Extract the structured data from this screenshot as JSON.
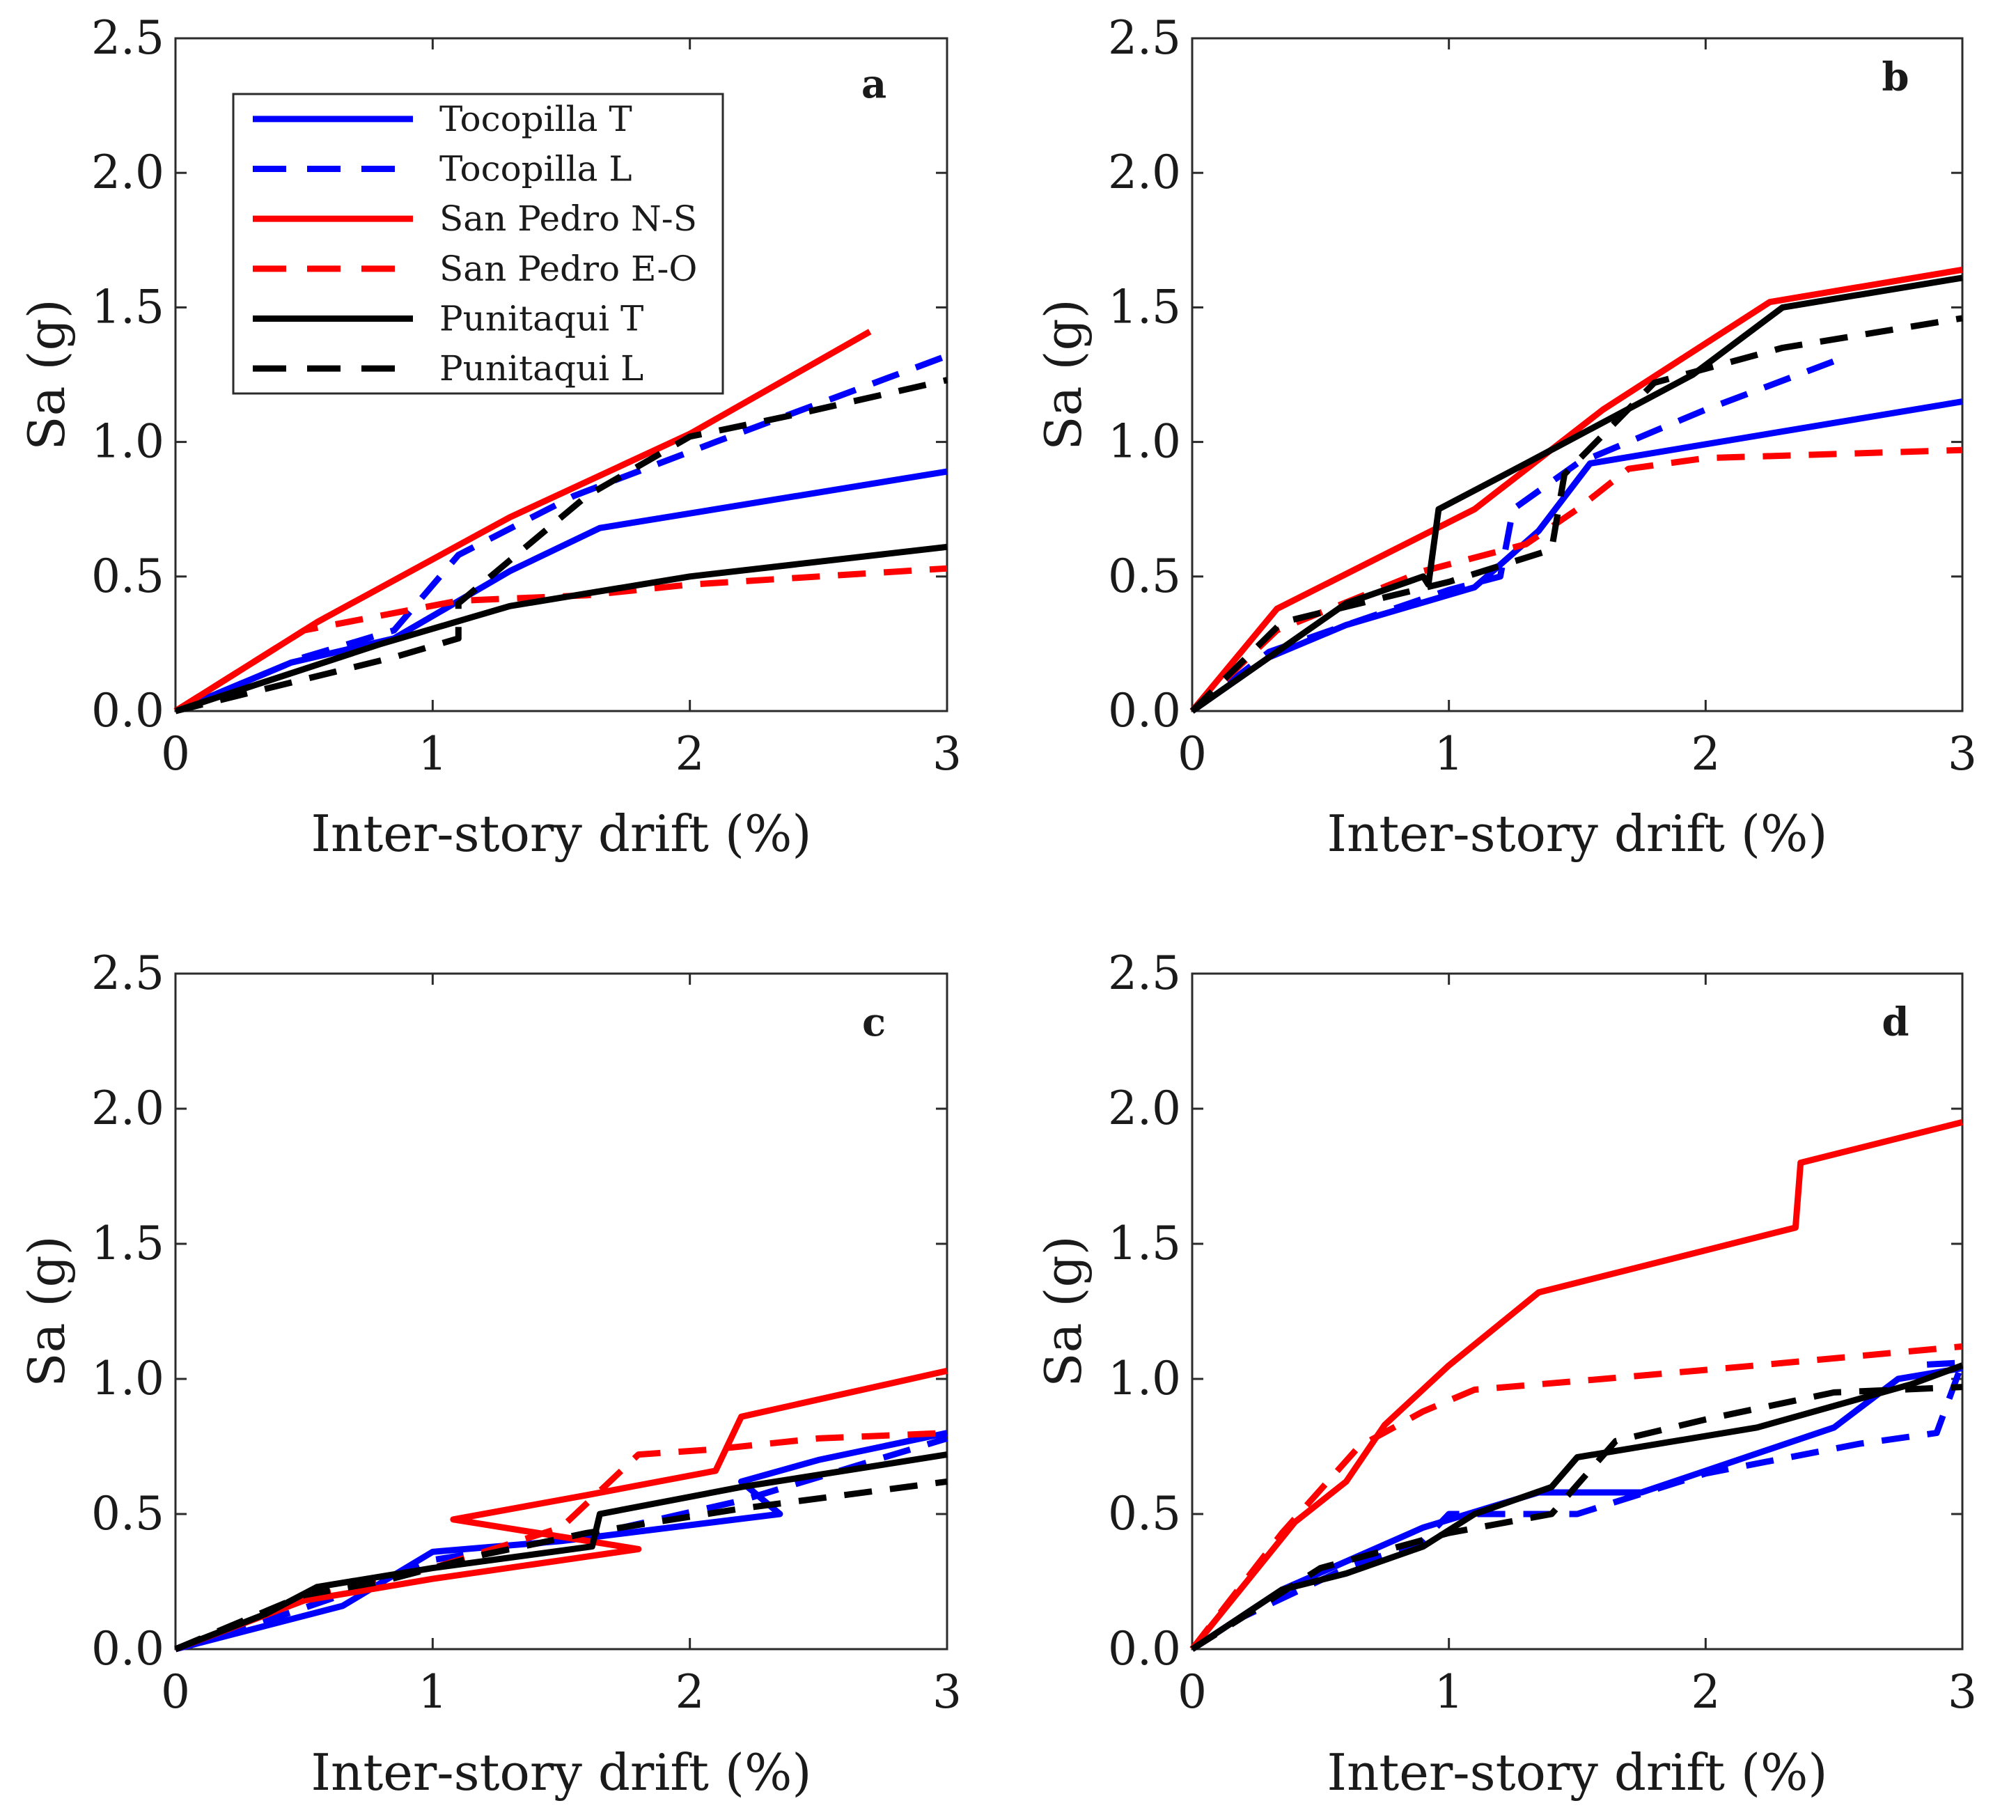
{
  "legend": {
    "entries": [
      {
        "name": "Tocopilla T",
        "color": "#0000ff",
        "dashed": false
      },
      {
        "name": "Tocopilla L",
        "color": "#0000ff",
        "dashed": true
      },
      {
        "name": "San Pedro N-S",
        "color": "#ff0000",
        "dashed": false
      },
      {
        "name": "San Pedro E-O",
        "color": "#ff0000",
        "dashed": true
      },
      {
        "name": "Punitaqui T",
        "color": "#000000",
        "dashed": false
      },
      {
        "name": "Punitaqui L",
        "color": "#000000",
        "dashed": true
      }
    ]
  },
  "chart_data": [
    {
      "type": "line",
      "panel": "a",
      "xlabel": "Inter-story drift (%)",
      "ylabel": "Sa (g)",
      "xlim": [
        0,
        3
      ],
      "ylim": [
        0,
        2.5
      ],
      "xticks": [
        "0",
        "1",
        "2",
        "3"
      ],
      "yticks": [
        "0.0",
        "0.5",
        "1.0",
        "1.5",
        "2.0",
        "2.5"
      ],
      "series": [
        {
          "name": "Tocopilla T",
          "x": [
            0,
            0.45,
            0.85,
            1.3,
            1.65,
            3.0
          ],
          "y": [
            0,
            0.18,
            0.27,
            0.52,
            0.68,
            0.89
          ]
        },
        {
          "name": "Tocopilla L",
          "x": [
            0,
            0.5,
            0.85,
            1.1,
            1.55,
            2.1,
            3.0
          ],
          "y": [
            0,
            0.2,
            0.3,
            0.58,
            0.8,
            1.0,
            1.32
          ]
        },
        {
          "name": "San Pedro N-S",
          "x": [
            0,
            0.55,
            1.3,
            2.0,
            2.7
          ],
          "y": [
            0,
            0.33,
            0.72,
            1.03,
            1.41
          ]
        },
        {
          "name": "San Pedro E-O",
          "x": [
            0,
            0.5,
            1.1,
            1.6,
            2.0,
            3.0
          ],
          "y": [
            0,
            0.3,
            0.41,
            0.43,
            0.47,
            0.53
          ]
        },
        {
          "name": "Punitaqui T",
          "x": [
            0,
            0.8,
            1.3,
            2.0,
            3.0
          ],
          "y": [
            0,
            0.25,
            0.39,
            0.5,
            0.61
          ]
        },
        {
          "name": "Punitaqui L",
          "x": [
            0,
            0.85,
            1.1,
            1.1,
            1.6,
            2.0,
            2.4,
            3.0
          ],
          "y": [
            0,
            0.2,
            0.27,
            0.4,
            0.8,
            1.02,
            1.1,
            1.23
          ]
        }
      ]
    },
    {
      "type": "line",
      "panel": "b",
      "xlabel": "Inter-story drift (%)",
      "ylabel": "Sa (g)",
      "xlim": [
        0,
        3
      ],
      "ylim": [
        0,
        2.5
      ],
      "xticks": [
        "0",
        "1",
        "2",
        "3"
      ],
      "yticks": [
        "0.0",
        "0.5",
        "1.0",
        "1.5",
        "2.0",
        "2.5"
      ],
      "series": [
        {
          "name": "Tocopilla T",
          "x": [
            0,
            0.3,
            0.6,
            1.1,
            1.35,
            1.55,
            3.0
          ],
          "y": [
            0,
            0.2,
            0.32,
            0.46,
            0.67,
            0.92,
            1.15
          ]
        },
        {
          "name": "Tocopilla L",
          "x": [
            0,
            0.3,
            0.6,
            1.0,
            1.2,
            1.25,
            1.5,
            2.0,
            2.5
          ],
          "y": [
            0,
            0.22,
            0.32,
            0.45,
            0.5,
            0.75,
            0.92,
            1.12,
            1.3
          ]
        },
        {
          "name": "San Pedro N-S",
          "x": [
            0,
            0.33,
            1.1,
            1.6,
            2.25,
            3.0
          ],
          "y": [
            0,
            0.38,
            0.75,
            1.12,
            1.52,
            1.64
          ]
        },
        {
          "name": "San Pedro E-O",
          "x": [
            0,
            0.33,
            0.9,
            1.3,
            1.5,
            1.7,
            2.0,
            3.0
          ],
          "y": [
            0,
            0.3,
            0.52,
            0.62,
            0.75,
            0.9,
            0.94,
            0.97
          ]
        },
        {
          "name": "Punitaqui T",
          "x": [
            0,
            0.6,
            0.9,
            0.92,
            0.96,
            1.3,
            1.95,
            2.3,
            3.0
          ],
          "y": [
            0,
            0.4,
            0.5,
            0.47,
            0.75,
            0.92,
            1.25,
            1.5,
            1.61
          ]
        },
        {
          "name": "Punitaqui L",
          "x": [
            0,
            0.35,
            1.0,
            1.4,
            1.45,
            1.8,
            2.3,
            3.0
          ],
          "y": [
            0,
            0.33,
            0.48,
            0.6,
            0.88,
            1.22,
            1.35,
            1.46
          ]
        }
      ]
    },
    {
      "type": "line",
      "panel": "c",
      "xlabel": "Inter-story drift (%)",
      "ylabel": "Sa (g)",
      "xlim": [
        0,
        3
      ],
      "ylim": [
        0,
        2.5
      ],
      "xticks": [
        "0",
        "1",
        "2",
        "3"
      ],
      "yticks": [
        "0.0",
        "0.5",
        "1.0",
        "1.5",
        "2.0",
        "2.5"
      ],
      "series": [
        {
          "name": "Tocopilla T",
          "x": [
            0,
            0.65,
            1.0,
            1.5,
            2.35,
            2.35,
            2.2,
            2.5,
            3.0
          ],
          "y": [
            0,
            0.16,
            0.36,
            0.4,
            0.5,
            0.5,
            0.62,
            0.7,
            0.8
          ]
        },
        {
          "name": "Tocopilla L",
          "x": [
            0,
            0.4,
            0.8,
            1.0,
            1.6,
            2.2,
            3.0
          ],
          "y": [
            0,
            0.12,
            0.25,
            0.33,
            0.42,
            0.55,
            0.78
          ]
        },
        {
          "name": "San Pedro N-S",
          "x": [
            0,
            0.5,
            1.0,
            1.8,
            1.08,
            1.6,
            2.1,
            2.2,
            3.0
          ],
          "y": [
            0,
            0.18,
            0.26,
            0.37,
            0.48,
            0.57,
            0.66,
            0.86,
            1.03
          ]
        },
        {
          "name": "San Pedro E-O",
          "x": [
            0,
            0.55,
            1.0,
            1.5,
            1.8,
            2.1,
            2.5,
            3.0
          ],
          "y": [
            0,
            0.2,
            0.3,
            0.45,
            0.72,
            0.74,
            0.78,
            0.8
          ]
        },
        {
          "name": "Punitaqui T",
          "x": [
            0,
            0.35,
            0.55,
            1.0,
            1.62,
            1.65,
            2.2,
            3.0
          ],
          "y": [
            0,
            0.13,
            0.23,
            0.3,
            0.38,
            0.5,
            0.6,
            0.72
          ]
        },
        {
          "name": "Punitaqui L",
          "x": [
            0,
            0.5,
            0.8,
            1.2,
            1.6,
            2.2,
            3.0
          ],
          "y": [
            0,
            0.2,
            0.25,
            0.35,
            0.43,
            0.52,
            0.62
          ]
        }
      ]
    },
    {
      "type": "line",
      "panel": "d",
      "xlabel": "Inter-story drift (%)",
      "ylabel": "Sa (g)",
      "xlim": [
        0,
        3
      ],
      "ylim": [
        0,
        2.5
      ],
      "xticks": [
        "0",
        "1",
        "2",
        "3"
      ],
      "yticks": [
        "0.0",
        "0.5",
        "1.0",
        "1.5",
        "2.0",
        "2.5"
      ],
      "series": [
        {
          "name": "Tocopilla T",
          "x": [
            0,
            0.35,
            0.9,
            1.35,
            1.75,
            2.5,
            2.75,
            3.0
          ],
          "y": [
            0,
            0.22,
            0.45,
            0.58,
            0.58,
            0.82,
            1.0,
            1.04
          ]
        },
        {
          "name": "Tocopilla L",
          "x": [
            0,
            0.2,
            0.6,
            0.9,
            1.0,
            1.5,
            2.0,
            2.6,
            2.9,
            3.0,
            2.8
          ],
          "y": [
            0,
            0.12,
            0.3,
            0.4,
            0.5,
            0.5,
            0.65,
            0.76,
            0.8,
            1.06,
            1.05
          ]
        },
        {
          "name": "San Pedro N-S",
          "x": [
            0,
            0.4,
            0.6,
            0.75,
            1.0,
            1.35,
            2.35,
            2.37,
            3.0
          ],
          "y": [
            0,
            0.47,
            0.62,
            0.83,
            1.05,
            1.32,
            1.56,
            1.8,
            1.95
          ]
        },
        {
          "name": "San Pedro E-O",
          "x": [
            0,
            0.35,
            0.65,
            0.9,
            1.1,
            1.6,
            2.2,
            3.0
          ],
          "y": [
            0,
            0.43,
            0.75,
            0.88,
            0.96,
            1.0,
            1.05,
            1.12
          ]
        },
        {
          "name": "Punitaqui T",
          "x": [
            0,
            0.35,
            0.6,
            0.9,
            1.1,
            1.4,
            1.5,
            2.2,
            2.8,
            3.0
          ],
          "y": [
            0,
            0.22,
            0.28,
            0.38,
            0.5,
            0.6,
            0.71,
            0.82,
            0.98,
            1.05
          ]
        },
        {
          "name": "Punitaqui L",
          "x": [
            0,
            0.5,
            1.0,
            1.4,
            1.65,
            2.0,
            2.5,
            3.0
          ],
          "y": [
            0,
            0.3,
            0.43,
            0.5,
            0.77,
            0.85,
            0.95,
            0.97
          ]
        }
      ]
    }
  ]
}
